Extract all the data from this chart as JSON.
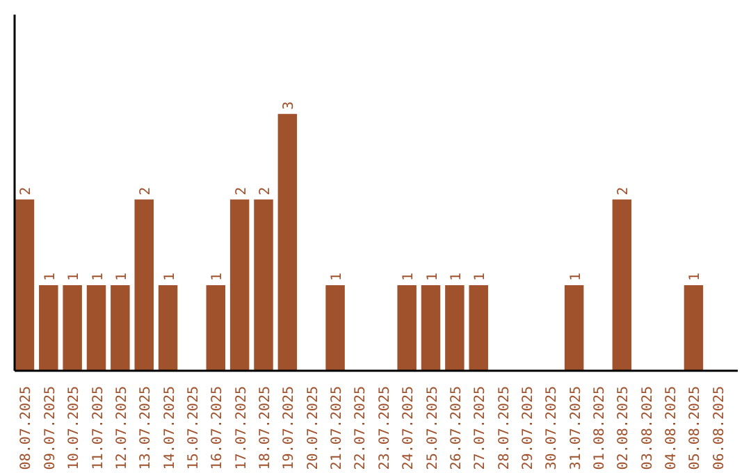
{
  "chart_data": {
    "type": "bar",
    "categories": [
      "08.07.2025",
      "09.07.2025",
      "10.07.2025",
      "11.07.2025",
      "12.07.2025",
      "13.07.2025",
      "14.07.2025",
      "15.07.2025",
      "16.07.2025",
      "17.07.2025",
      "18.07.2025",
      "19.07.2025",
      "20.07.2025",
      "21.07.2025",
      "22.07.2025",
      "23.07.2025",
      "24.07.2025",
      "25.07.2025",
      "26.07.2025",
      "27.07.2025",
      "28.07.2025",
      "29.07.2025",
      "30.07.2025",
      "31.07.2025",
      "01.08.2025",
      "02.08.2025",
      "03.08.2025",
      "04.08.2025",
      "05.08.2025",
      "06.08.2025"
    ],
    "values": [
      2,
      1,
      1,
      1,
      1,
      2,
      1,
      0,
      1,
      2,
      2,
      3,
      0,
      1,
      0,
      0,
      1,
      1,
      1,
      1,
      0,
      0,
      0,
      1,
      0,
      2,
      0,
      0,
      1,
      0
    ],
    "value_labels": [
      "2",
      "1",
      "1",
      "1",
      "1",
      "2",
      "1",
      null,
      "1",
      "2",
      "2",
      "3",
      null,
      "1",
      null,
      null,
      "1",
      "1",
      "1",
      "1",
      null,
      null,
      null,
      "1",
      null,
      "2",
      null,
      null,
      "1",
      null
    ],
    "color": "#a0522d",
    "ylim": [
      0,
      4.16
    ],
    "tick_labels": "x",
    "grid": false
  }
}
